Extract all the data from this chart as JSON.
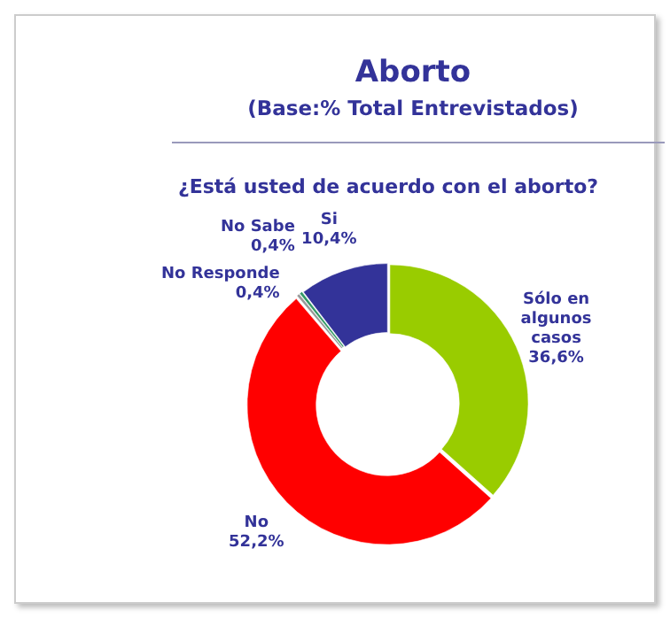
{
  "chart_data": {
    "type": "donut",
    "title": "Aborto",
    "subtitle": "(Base:% Total Entrevistados)",
    "annotations": [
      "¿Está usted de acuerdo con el aborto?"
    ],
    "categories": [
      "Sólo en algunos casos",
      "No",
      "No Responde",
      "No Sabe",
      "Si"
    ],
    "values": [
      36.6,
      52.2,
      0.4,
      0.4,
      10.4
    ],
    "value_labels": [
      "36,6%",
      "52,2%",
      "0,4%",
      "0,4%",
      "10,4%"
    ],
    "colors": [
      "#99cc00",
      "#ff0000",
      "#999999",
      "#339966",
      "#333399"
    ],
    "legend": false
  }
}
